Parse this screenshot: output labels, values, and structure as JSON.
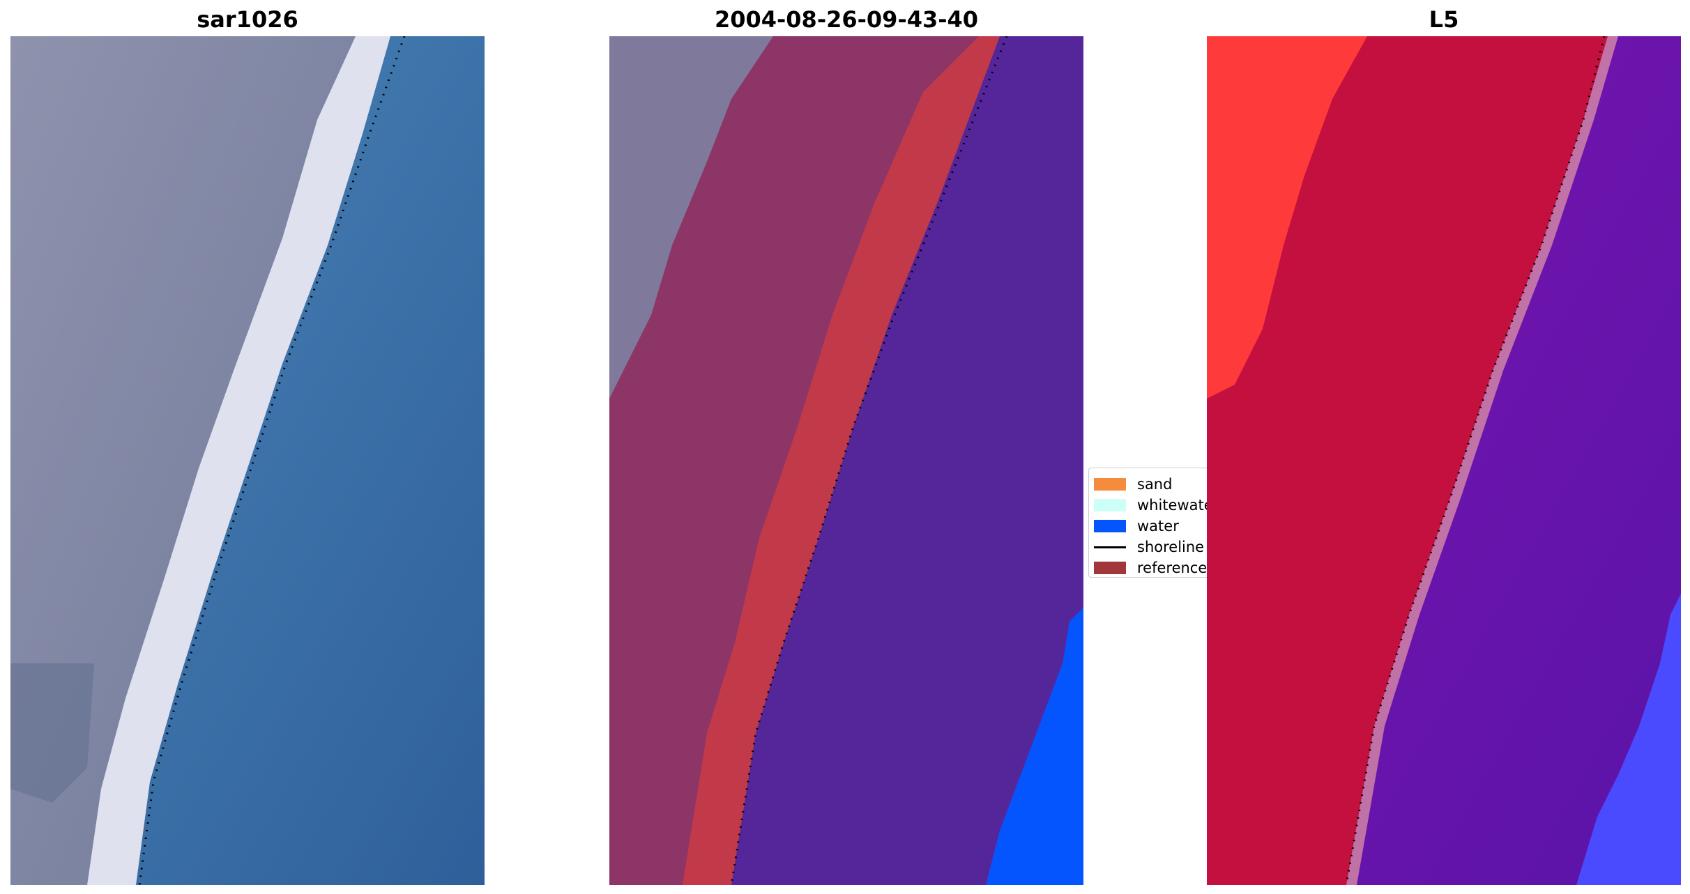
{
  "panels": [
    {
      "title": "sar1026"
    },
    {
      "title": "2004-08-26-09-43-40"
    },
    {
      "title": "L5"
    }
  ],
  "legend": {
    "items": [
      {
        "label": "sand",
        "kind": "patch",
        "color": "#f58b3c"
      },
      {
        "label": "whitewater",
        "kind": "patch",
        "color": "#ccfff8"
      },
      {
        "label": "water",
        "kind": "patch",
        "color": "#0555ff"
      },
      {
        "label": "shoreline",
        "kind": "line",
        "color": "#000000"
      },
      {
        "label": "reference",
        "kind": "patch",
        "color": "#a1373a"
      }
    ]
  },
  "colors": {
    "rgb_land": "#8a8fa8",
    "rgb_whitewater": "#f2eef6",
    "rgb_water": "#3d7ab0",
    "class_sand_overlay": "#8c3566",
    "class_whitewater_overlay": "#c23a4a",
    "class_water_overlay": "#55269a",
    "class_water_bright": "#0555ff",
    "index_land": "#c4103e",
    "index_land_bright": "#ff3a3a",
    "index_water": "#6a12a8",
    "index_water_bright": "#4a4aff"
  }
}
